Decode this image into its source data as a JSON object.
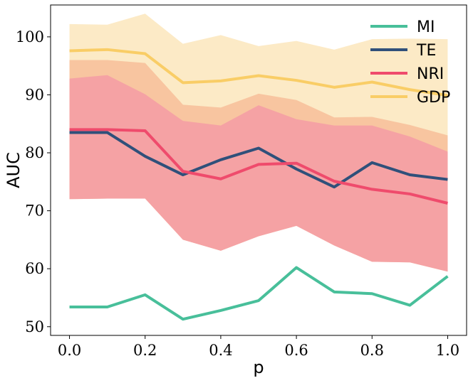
{
  "chart_data": {
    "type": "line",
    "title": "",
    "xlabel": "p",
    "ylabel": "AUC",
    "xlim": [
      -0.05,
      1.05
    ],
    "ylim": [
      48.5,
      105.5
    ],
    "xticks": [
      0.0,
      0.2,
      0.4,
      0.6,
      0.8,
      1.0
    ],
    "xtick_labels": [
      "0.0",
      "0.2",
      "0.4",
      "0.6",
      "0.8",
      "1.0"
    ],
    "yticks": [
      50,
      60,
      70,
      80,
      90,
      100
    ],
    "ytick_labels": [
      "50",
      "60",
      "70",
      "80",
      "90",
      "100"
    ],
    "grid": false,
    "legend_position": "top-right",
    "x": [
      0.0,
      0.1,
      0.2,
      0.3,
      0.4,
      0.5,
      0.6,
      0.7,
      0.8,
      0.9,
      1.0
    ],
    "series": [
      {
        "name": "MI",
        "color": "#48bf9a",
        "values": [
          53.4,
          53.4,
          55.5,
          51.3,
          52.8,
          54.5,
          60.2,
          56.0,
          55.7,
          53.7,
          58.7
        ]
      },
      {
        "name": "TE",
        "color": "#30507a",
        "values": [
          83.5,
          83.5,
          79.4,
          76.2,
          78.8,
          80.8,
          77.2,
          74.1,
          78.3,
          76.2,
          75.4
        ],
        "band_lower": [
          72.0,
          72.1,
          72.1,
          65.0,
          63.1,
          65.6,
          67.4,
          64.0,
          61.2,
          61.1,
          59.5
        ],
        "band_upper": [
          96.0,
          96.0,
          95.5,
          88.3,
          87.8,
          90.2,
          89.1,
          86.1,
          86.2,
          84.8,
          83.0
        ],
        "band_color": "#f4a582",
        "band_opacity": 0.55
      },
      {
        "name": "NRI",
        "color": "#ef4b6c",
        "values": [
          84.0,
          84.0,
          83.8,
          76.8,
          75.5,
          78.0,
          78.2,
          75.1,
          73.7,
          72.9,
          71.3
        ],
        "band_lower": [
          72.0,
          72.1,
          72.1,
          65.0,
          63.1,
          65.6,
          67.4,
          64.0,
          61.2,
          61.1,
          59.5
        ],
        "band_upper": [
          92.8,
          93.4,
          90.1,
          85.5,
          84.7,
          88.2,
          85.8,
          84.7,
          84.7,
          82.8,
          80.2
        ],
        "band_color": "#f48aa6",
        "band_opacity": 0.6
      },
      {
        "name": "GDP",
        "color": "#f9cd66",
        "values": [
          97.6,
          97.8,
          97.1,
          92.1,
          92.4,
          93.3,
          92.5,
          91.3,
          92.2,
          90.9,
          89.9
        ],
        "band_lower": [
          72.0,
          72.1,
          72.1,
          65.0,
          63.1,
          65.6,
          67.4,
          64.0,
          61.2,
          61.1,
          59.5
        ],
        "band_upper": [
          102.2,
          102.1,
          104.0,
          98.8,
          100.3,
          98.4,
          99.3,
          97.8,
          99.6,
          99.7,
          99.6
        ],
        "band_color": "#fbe3b3",
        "band_opacity": 0.75
      }
    ]
  }
}
